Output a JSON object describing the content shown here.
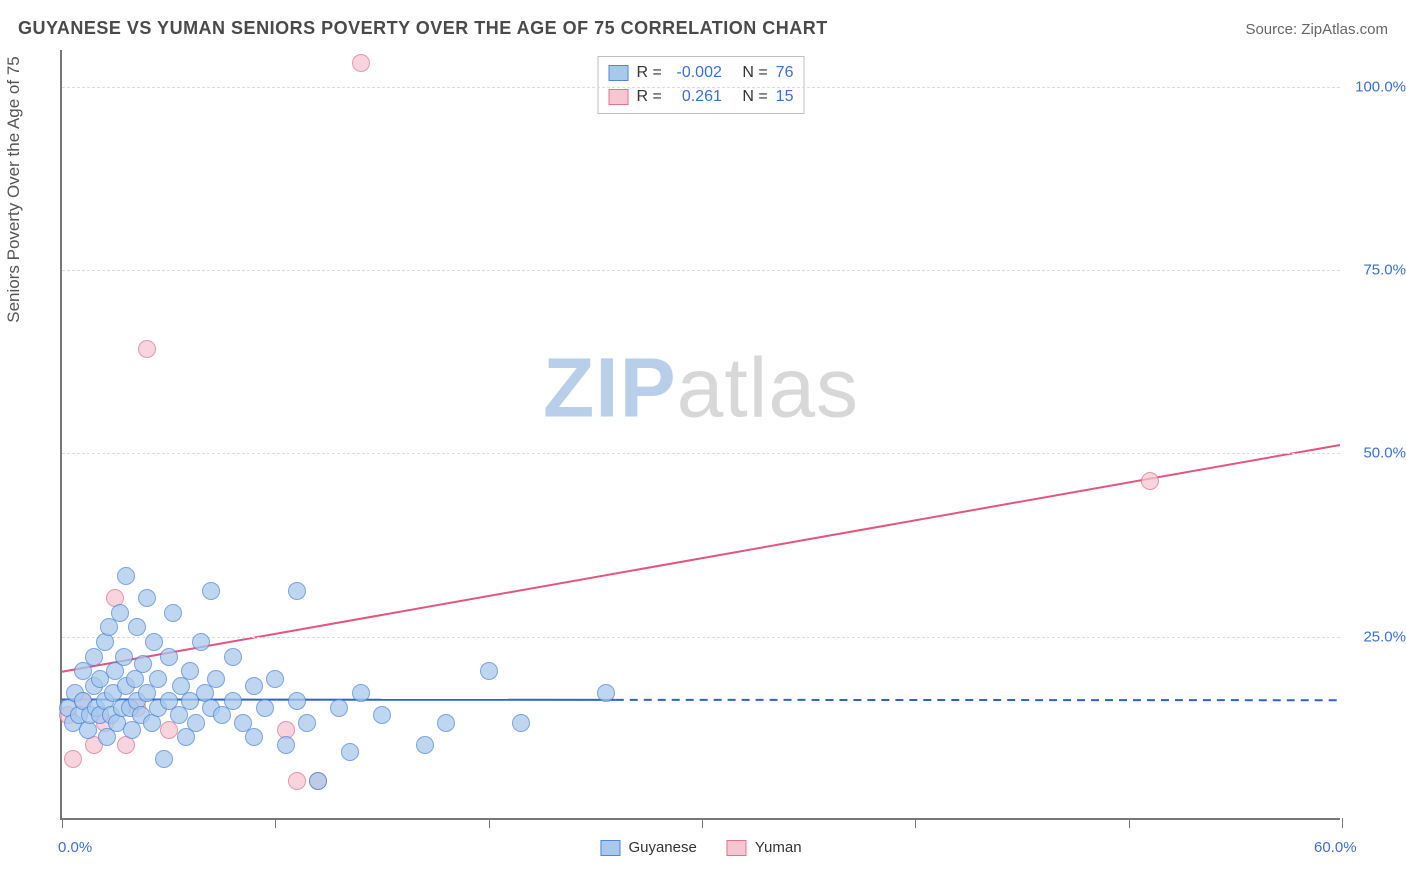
{
  "header": {
    "title": "GUYANESE VS YUMAN SENIORS POVERTY OVER THE AGE OF 75 CORRELATION CHART",
    "source": "Source: ZipAtlas.com"
  },
  "axes": {
    "y_label": "Seniors Poverty Over the Age of 75",
    "xlim": [
      0,
      60
    ],
    "ylim": [
      0,
      105
    ],
    "y_ticks": [
      25,
      50,
      75,
      100
    ],
    "y_tick_labels": [
      "25.0%",
      "50.0%",
      "75.0%",
      "100.0%"
    ],
    "x_ticks": [
      0,
      10,
      20,
      30,
      40,
      50,
      60
    ],
    "x_tick_labels_shown": {
      "0": "0.0%",
      "60": "60.0%"
    },
    "tick_label_color": "#3a6fd8",
    "grid_color": "#dcdcdc",
    "axis_color": "#777777"
  },
  "watermark": {
    "text_a": "ZIP",
    "text_b": "atlas",
    "color_a": "#b9cfe9",
    "color_b": "#d8d8d8"
  },
  "series": {
    "guyanese": {
      "label": "Guyanese",
      "fill": "#a9c9ec",
      "stroke": "#4f86d6",
      "opacity": 0.75,
      "radius": 9,
      "points": [
        [
          0.3,
          15
        ],
        [
          0.5,
          13
        ],
        [
          0.6,
          17
        ],
        [
          0.8,
          14
        ],
        [
          1.0,
          20
        ],
        [
          1.0,
          16
        ],
        [
          1.2,
          12
        ],
        [
          1.3,
          14
        ],
        [
          1.5,
          18
        ],
        [
          1.5,
          22
        ],
        [
          1.6,
          15
        ],
        [
          1.8,
          14
        ],
        [
          1.8,
          19
        ],
        [
          2.0,
          24
        ],
        [
          2.0,
          16
        ],
        [
          2.1,
          11
        ],
        [
          2.2,
          26
        ],
        [
          2.3,
          14
        ],
        [
          2.4,
          17
        ],
        [
          2.5,
          20
        ],
        [
          2.6,
          13
        ],
        [
          2.7,
          28
        ],
        [
          2.8,
          15
        ],
        [
          2.9,
          22
        ],
        [
          3.0,
          18
        ],
        [
          3.0,
          33
        ],
        [
          3.2,
          15
        ],
        [
          3.3,
          12
        ],
        [
          3.4,
          19
        ],
        [
          3.5,
          16
        ],
        [
          3.5,
          26
        ],
        [
          3.7,
          14
        ],
        [
          3.8,
          21
        ],
        [
          4.0,
          30
        ],
        [
          4.0,
          17
        ],
        [
          4.2,
          13
        ],
        [
          4.3,
          24
        ],
        [
          4.5,
          15
        ],
        [
          4.5,
          19
        ],
        [
          4.8,
          8
        ],
        [
          5.0,
          22
        ],
        [
          5.0,
          16
        ],
        [
          5.2,
          28
        ],
        [
          5.5,
          14
        ],
        [
          5.6,
          18
        ],
        [
          5.8,
          11
        ],
        [
          6.0,
          20
        ],
        [
          6.0,
          16
        ],
        [
          6.3,
          13
        ],
        [
          6.5,
          24
        ],
        [
          6.7,
          17
        ],
        [
          7.0,
          15
        ],
        [
          7.0,
          31
        ],
        [
          7.2,
          19
        ],
        [
          7.5,
          14
        ],
        [
          8.0,
          22
        ],
        [
          8.0,
          16
        ],
        [
          8.5,
          13
        ],
        [
          9.0,
          18
        ],
        [
          9.0,
          11
        ],
        [
          9.5,
          15
        ],
        [
          10.0,
          19
        ],
        [
          10.5,
          10
        ],
        [
          11.0,
          16
        ],
        [
          11.0,
          31
        ],
        [
          11.5,
          13
        ],
        [
          12.0,
          5
        ],
        [
          13.0,
          15
        ],
        [
          13.5,
          9
        ],
        [
          14.0,
          17
        ],
        [
          15.0,
          14
        ],
        [
          17.0,
          10
        ],
        [
          18.0,
          13
        ],
        [
          20.0,
          20
        ],
        [
          21.5,
          13
        ],
        [
          25.5,
          17
        ]
      ]
    },
    "yuman": {
      "label": "Yuman",
      "fill": "#f6c6d3",
      "stroke": "#e2738f",
      "opacity": 0.75,
      "radius": 9,
      "points": [
        [
          0.3,
          14
        ],
        [
          0.5,
          8
        ],
        [
          1.0,
          16
        ],
        [
          1.5,
          10
        ],
        [
          2.0,
          13
        ],
        [
          2.5,
          30
        ],
        [
          3.0,
          10
        ],
        [
          3.5,
          15
        ],
        [
          4.0,
          64
        ],
        [
          5.0,
          12
        ],
        [
          10.5,
          12
        ],
        [
          11.0,
          5
        ],
        [
          12.0,
          5
        ],
        [
          14.0,
          103
        ],
        [
          51.0,
          46
        ]
      ]
    }
  },
  "trendlines": {
    "guyanese": {
      "color": "#2f62c9",
      "width": 2,
      "solid_from_x": 0,
      "solid_to_x": 26,
      "dash_from_x": 26,
      "dash_to_x": 60,
      "y_start": 16.2,
      "y_end": 16.1
    },
    "yuman": {
      "color": "#e2557e",
      "width": 2,
      "solid_from_x": 0,
      "solid_to_x": 60,
      "y_start": 20,
      "y_end": 51
    }
  },
  "stats": [
    {
      "swatch_fill": "#a9c9ec",
      "swatch_stroke": "#4f86d6",
      "r": "-0.002",
      "n": "76"
    },
    {
      "swatch_fill": "#f6c6d3",
      "swatch_stroke": "#e2738f",
      "r": "0.261",
      "n": "15"
    }
  ],
  "stats_labels": {
    "r_prefix": "R =",
    "n_prefix": "N ="
  }
}
